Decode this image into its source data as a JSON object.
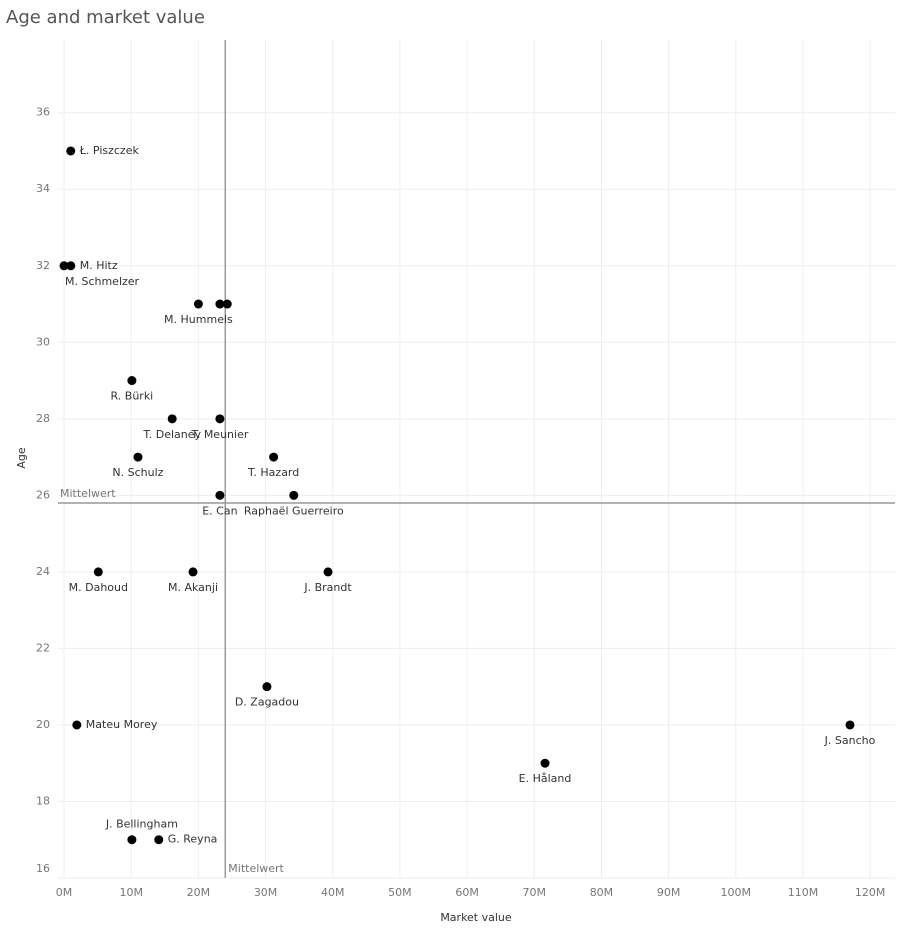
{
  "chart_data": {
    "type": "scatter",
    "title": "Age and market value",
    "x_label": "Market value",
    "y_label": "Age",
    "color": "#000000",
    "names": [
      "Ł. Piszczek",
      "M. Hitz",
      "M. Schmelzer",
      "M. Hummels",
      null,
      null,
      "R. Bürki",
      "T. Delaney",
      "T. Meunier",
      "N. Schulz",
      "T. Hazard",
      "E. Can",
      "Raphaël Guerreiro",
      "M. Dahoud",
      "M. Akanji",
      "J. Brandt",
      "D. Zagadou",
      "Mateu Morey",
      "J. Sancho",
      "E. Håland",
      "J. Bellingham",
      "G. Reyna"
    ],
    "x": [
      1,
      1,
      0,
      20,
      23.2,
      24.3,
      10.1,
      16.1,
      23.2,
      11,
      31.2,
      23.2,
      34.2,
      5.1,
      19.2,
      39.3,
      30.2,
      1.9,
      117,
      71.6,
      10.1,
      14.1
    ],
    "values": [
      35,
      32,
      32,
      31,
      31,
      31,
      29,
      28,
      28,
      27,
      27,
      26,
      26,
      24,
      24,
      24,
      21,
      20,
      20,
      19,
      17,
      17
    ],
    "reference_lines": [
      {
        "axis": "x",
        "value": 24,
        "label": "Mittelwert"
      },
      {
        "axis": "y",
        "value": 25.8,
        "label": "Mittelwert"
      }
    ],
    "xlim": [
      -0.9,
      123.7
    ],
    "ylim": [
      16,
      37.9
    ],
    "xticks": [
      {
        "value": 0,
        "label": "0M"
      },
      {
        "value": 10,
        "label": "10M"
      },
      {
        "value": 20,
        "label": "20M"
      },
      {
        "value": 30,
        "label": "30M"
      },
      {
        "value": 40,
        "label": "40M"
      },
      {
        "value": 50,
        "label": "50M"
      },
      {
        "value": 60,
        "label": "60M"
      },
      {
        "value": 70,
        "label": "70M"
      },
      {
        "value": 80,
        "label": "80M"
      },
      {
        "value": 90,
        "label": "90M"
      },
      {
        "value": 100,
        "label": "100M"
      },
      {
        "value": 110,
        "label": "110M"
      },
      {
        "value": 120,
        "label": "120M"
      }
    ],
    "yticks": [
      16,
      18,
      20,
      22,
      24,
      26,
      28,
      30,
      32,
      34,
      36
    ],
    "grid": true
  }
}
